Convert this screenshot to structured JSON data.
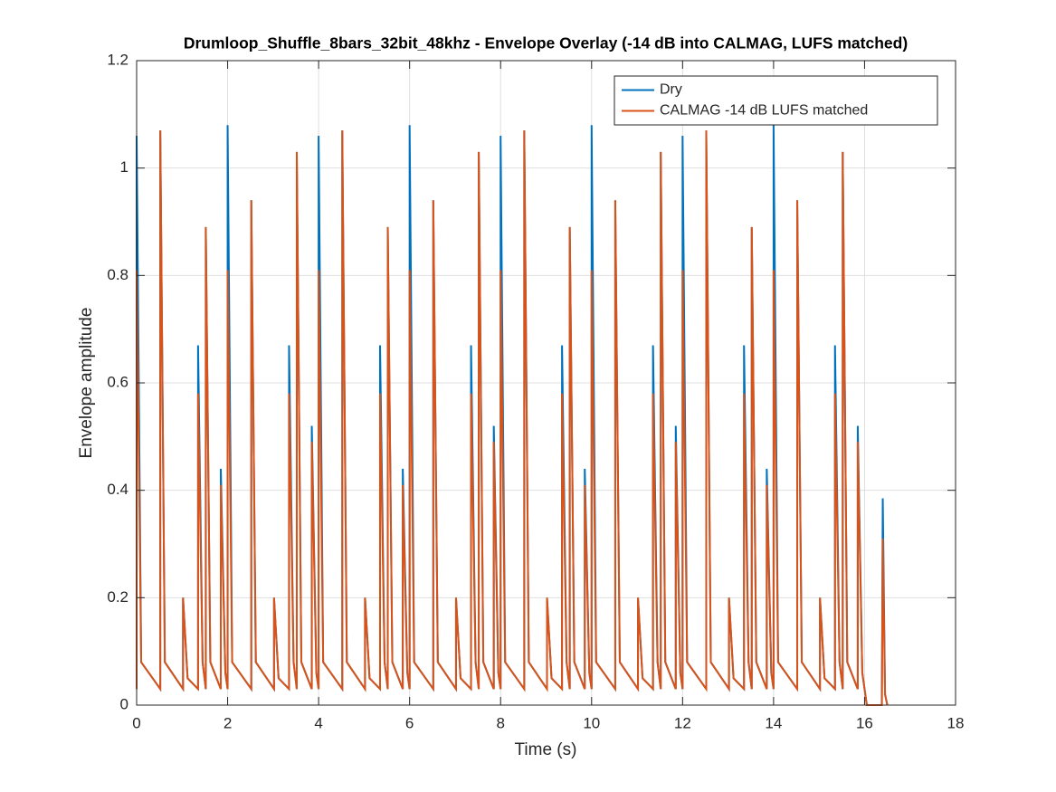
{
  "chart_data": {
    "type": "line",
    "title": "Drumloop_Shuffle_8bars_32bit_48khz - Envelope Overlay (-14 dB into CALMAG, LUFS matched)",
    "xlabel": "Time (s)",
    "ylabel": "Envelope amplitude",
    "xlim": [
      0,
      18
    ],
    "ylim": [
      0,
      1.2
    ],
    "xticks": [
      0,
      2,
      4,
      6,
      8,
      10,
      12,
      14,
      16,
      18
    ],
    "yticks": [
      0,
      0.2,
      0.4,
      0.6,
      0.8,
      1,
      1.2
    ],
    "grid": true,
    "legend": "upper right",
    "x": [
      0,
      0,
      0.1,
      0.52,
      0.52,
      0.62,
      1.02,
      1.02,
      1.12,
      1.35,
      1.35,
      1.45,
      1.52,
      1.52,
      1.62,
      1.85,
      1.85,
      1.95,
      2,
      2,
      2.1,
      2.52,
      2.52,
      2.62,
      3.02,
      3.02,
      3.12,
      3.35,
      3.35,
      3.45,
      3.52,
      3.52,
      3.62,
      3.85,
      3.85,
      3.95,
      4,
      4,
      4.1,
      4.52,
      4.52,
      4.62,
      5.02,
      5.02,
      5.12,
      5.35,
      5.35,
      5.45,
      5.52,
      5.52,
      5.62,
      5.85,
      5.85,
      5.95,
      6,
      6,
      6.1,
      6.52,
      6.52,
      6.62,
      7.02,
      7.02,
      7.12,
      7.35,
      7.35,
      7.45,
      7.52,
      7.52,
      7.62,
      7.85,
      7.85,
      7.95,
      8,
      8,
      8.1,
      8.52,
      8.52,
      8.62,
      9.02,
      9.02,
      9.12,
      9.35,
      9.35,
      9.45,
      9.52,
      9.52,
      9.62,
      9.85,
      9.85,
      9.95,
      10,
      10,
      10.1,
      10.52,
      10.52,
      10.62,
      11.02,
      11.02,
      11.12,
      11.35,
      11.35,
      11.45,
      11.52,
      11.52,
      11.62,
      11.85,
      11.85,
      11.95,
      12,
      12,
      12.1,
      12.52,
      12.52,
      12.62,
      13.02,
      13.02,
      13.12,
      13.35,
      13.35,
      13.45,
      13.52,
      13.52,
      13.62,
      13.85,
      13.85,
      13.95,
      14,
      14,
      14.1,
      14.52,
      14.52,
      14.62,
      15.02,
      15.02,
      15.12,
      15.35,
      15.35,
      15.45,
      15.52,
      15.52,
      15.62,
      15.85,
      15.85,
      15.95,
      16,
      16.05,
      16.38,
      16.4,
      16.45,
      16.5
    ],
    "series": [
      {
        "name": "Dry",
        "color": "#0072BD",
        "values": [
          0.03,
          1.06,
          0.08,
          0.03,
          1.07,
          0.08,
          0.03,
          0.2,
          0.05,
          0.03,
          0.67,
          0.08,
          0.03,
          0.89,
          0.08,
          0.03,
          0.44,
          0.06,
          0.03,
          1.08,
          0.08,
          0.03,
          0.94,
          0.08,
          0.03,
          0.2,
          0.05,
          0.03,
          0.67,
          0.08,
          0.03,
          1.03,
          0.08,
          0.03,
          0.52,
          0.06,
          0.03,
          1.06,
          0.08,
          0.03,
          1.07,
          0.08,
          0.03,
          0.2,
          0.05,
          0.03,
          0.67,
          0.08,
          0.03,
          0.89,
          0.08,
          0.03,
          0.44,
          0.06,
          0.03,
          1.08,
          0.08,
          0.03,
          0.94,
          0.08,
          0.03,
          0.2,
          0.05,
          0.03,
          0.67,
          0.08,
          0.03,
          1.03,
          0.08,
          0.03,
          0.52,
          0.06,
          0.03,
          1.06,
          0.08,
          0.03,
          1.07,
          0.08,
          0.03,
          0.2,
          0.05,
          0.03,
          0.67,
          0.08,
          0.03,
          0.89,
          0.08,
          0.03,
          0.44,
          0.06,
          0.03,
          1.08,
          0.08,
          0.03,
          0.94,
          0.08,
          0.03,
          0.2,
          0.05,
          0.03,
          0.67,
          0.08,
          0.03,
          1.03,
          0.08,
          0.03,
          0.52,
          0.06,
          0.03,
          1.06,
          0.08,
          0.03,
          1.07,
          0.08,
          0.03,
          0.2,
          0.05,
          0.03,
          0.67,
          0.08,
          0.03,
          0.89,
          0.08,
          0.03,
          0.44,
          0.06,
          0.03,
          1.08,
          0.08,
          0.03,
          0.94,
          0.08,
          0.03,
          0.2,
          0.05,
          0.03,
          0.67,
          0.08,
          0.03,
          1.03,
          0.08,
          0.03,
          0.52,
          0.06,
          0.03,
          0,
          0,
          0.385,
          0.02,
          0
        ]
      },
      {
        "name": "CALMAG -14 dB LUFS matched",
        "color": "#D95319",
        "values": [
          0.03,
          0.81,
          0.08,
          0.03,
          1.07,
          0.08,
          0.03,
          0.2,
          0.05,
          0.03,
          0.58,
          0.08,
          0.03,
          0.89,
          0.08,
          0.03,
          0.41,
          0.06,
          0.03,
          0.81,
          0.08,
          0.03,
          0.94,
          0.08,
          0.03,
          0.2,
          0.05,
          0.03,
          0.58,
          0.08,
          0.03,
          1.03,
          0.08,
          0.03,
          0.49,
          0.06,
          0.03,
          0.81,
          0.08,
          0.03,
          1.07,
          0.08,
          0.03,
          0.2,
          0.05,
          0.03,
          0.58,
          0.08,
          0.03,
          0.89,
          0.08,
          0.03,
          0.41,
          0.06,
          0.03,
          0.81,
          0.08,
          0.03,
          0.94,
          0.08,
          0.03,
          0.2,
          0.05,
          0.03,
          0.58,
          0.08,
          0.03,
          1.03,
          0.08,
          0.03,
          0.49,
          0.06,
          0.03,
          0.81,
          0.08,
          0.03,
          1.07,
          0.08,
          0.03,
          0.2,
          0.05,
          0.03,
          0.58,
          0.08,
          0.03,
          0.89,
          0.08,
          0.03,
          0.41,
          0.06,
          0.03,
          0.81,
          0.08,
          0.03,
          0.94,
          0.08,
          0.03,
          0.2,
          0.05,
          0.03,
          0.58,
          0.08,
          0.03,
          1.03,
          0.08,
          0.03,
          0.49,
          0.06,
          0.03,
          0.81,
          0.08,
          0.03,
          1.07,
          0.08,
          0.03,
          0.2,
          0.05,
          0.03,
          0.58,
          0.08,
          0.03,
          0.89,
          0.08,
          0.03,
          0.41,
          0.06,
          0.03,
          0.81,
          0.08,
          0.03,
          0.94,
          0.08,
          0.03,
          0.2,
          0.05,
          0.03,
          0.58,
          0.08,
          0.03,
          1.03,
          0.08,
          0.03,
          0.49,
          0.06,
          0.03,
          0,
          0,
          0.31,
          0.02,
          0
        ]
      }
    ]
  }
}
